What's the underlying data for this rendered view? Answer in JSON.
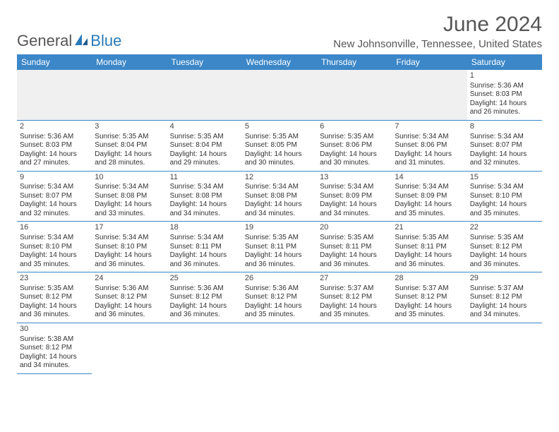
{
  "logo": {
    "text1": "General",
    "text2": "Blue"
  },
  "title": "June 2024",
  "location": "New Johnsonville, Tennessee, United States",
  "colors": {
    "header_bg": "#3b87c8",
    "header_text": "#ffffff",
    "border": "#3b87c8",
    "logo_accent": "#2a7ab8",
    "text": "#333333",
    "blank_bg": "#f0f0f0"
  },
  "dayNames": [
    "Sunday",
    "Monday",
    "Tuesday",
    "Wednesday",
    "Thursday",
    "Friday",
    "Saturday"
  ],
  "weeks": [
    [
      null,
      null,
      null,
      null,
      null,
      null,
      {
        "n": "1",
        "sr": "5:36 AM",
        "ss": "8:03 PM",
        "dl": "14 hours and 26 minutes."
      }
    ],
    [
      {
        "n": "2",
        "sr": "5:36 AM",
        "ss": "8:03 PM",
        "dl": "14 hours and 27 minutes."
      },
      {
        "n": "3",
        "sr": "5:35 AM",
        "ss": "8:04 PM",
        "dl": "14 hours and 28 minutes."
      },
      {
        "n": "4",
        "sr": "5:35 AM",
        "ss": "8:04 PM",
        "dl": "14 hours and 29 minutes."
      },
      {
        "n": "5",
        "sr": "5:35 AM",
        "ss": "8:05 PM",
        "dl": "14 hours and 30 minutes."
      },
      {
        "n": "6",
        "sr": "5:35 AM",
        "ss": "8:06 PM",
        "dl": "14 hours and 30 minutes."
      },
      {
        "n": "7",
        "sr": "5:34 AM",
        "ss": "8:06 PM",
        "dl": "14 hours and 31 minutes."
      },
      {
        "n": "8",
        "sr": "5:34 AM",
        "ss": "8:07 PM",
        "dl": "14 hours and 32 minutes."
      }
    ],
    [
      {
        "n": "9",
        "sr": "5:34 AM",
        "ss": "8:07 PM",
        "dl": "14 hours and 32 minutes."
      },
      {
        "n": "10",
        "sr": "5:34 AM",
        "ss": "8:08 PM",
        "dl": "14 hours and 33 minutes."
      },
      {
        "n": "11",
        "sr": "5:34 AM",
        "ss": "8:08 PM",
        "dl": "14 hours and 34 minutes."
      },
      {
        "n": "12",
        "sr": "5:34 AM",
        "ss": "8:08 PM",
        "dl": "14 hours and 34 minutes."
      },
      {
        "n": "13",
        "sr": "5:34 AM",
        "ss": "8:09 PM",
        "dl": "14 hours and 34 minutes."
      },
      {
        "n": "14",
        "sr": "5:34 AM",
        "ss": "8:09 PM",
        "dl": "14 hours and 35 minutes."
      },
      {
        "n": "15",
        "sr": "5:34 AM",
        "ss": "8:10 PM",
        "dl": "14 hours and 35 minutes."
      }
    ],
    [
      {
        "n": "16",
        "sr": "5:34 AM",
        "ss": "8:10 PM",
        "dl": "14 hours and 35 minutes."
      },
      {
        "n": "17",
        "sr": "5:34 AM",
        "ss": "8:10 PM",
        "dl": "14 hours and 36 minutes."
      },
      {
        "n": "18",
        "sr": "5:34 AM",
        "ss": "8:11 PM",
        "dl": "14 hours and 36 minutes."
      },
      {
        "n": "19",
        "sr": "5:35 AM",
        "ss": "8:11 PM",
        "dl": "14 hours and 36 minutes."
      },
      {
        "n": "20",
        "sr": "5:35 AM",
        "ss": "8:11 PM",
        "dl": "14 hours and 36 minutes."
      },
      {
        "n": "21",
        "sr": "5:35 AM",
        "ss": "8:11 PM",
        "dl": "14 hours and 36 minutes."
      },
      {
        "n": "22",
        "sr": "5:35 AM",
        "ss": "8:12 PM",
        "dl": "14 hours and 36 minutes."
      }
    ],
    [
      {
        "n": "23",
        "sr": "5:35 AM",
        "ss": "8:12 PM",
        "dl": "14 hours and 36 minutes."
      },
      {
        "n": "24",
        "sr": "5:36 AM",
        "ss": "8:12 PM",
        "dl": "14 hours and 36 minutes."
      },
      {
        "n": "25",
        "sr": "5:36 AM",
        "ss": "8:12 PM",
        "dl": "14 hours and 36 minutes."
      },
      {
        "n": "26",
        "sr": "5:36 AM",
        "ss": "8:12 PM",
        "dl": "14 hours and 35 minutes."
      },
      {
        "n": "27",
        "sr": "5:37 AM",
        "ss": "8:12 PM",
        "dl": "14 hours and 35 minutes."
      },
      {
        "n": "28",
        "sr": "5:37 AM",
        "ss": "8:12 PM",
        "dl": "14 hours and 35 minutes."
      },
      {
        "n": "29",
        "sr": "5:37 AM",
        "ss": "8:12 PM",
        "dl": "14 hours and 34 minutes."
      }
    ],
    [
      {
        "n": "30",
        "sr": "5:38 AM",
        "ss": "8:12 PM",
        "dl": "14 hours and 34 minutes."
      },
      null,
      null,
      null,
      null,
      null,
      null
    ]
  ],
  "labels": {
    "sunrise": "Sunrise:",
    "sunset": "Sunset:",
    "daylight": "Daylight:"
  }
}
